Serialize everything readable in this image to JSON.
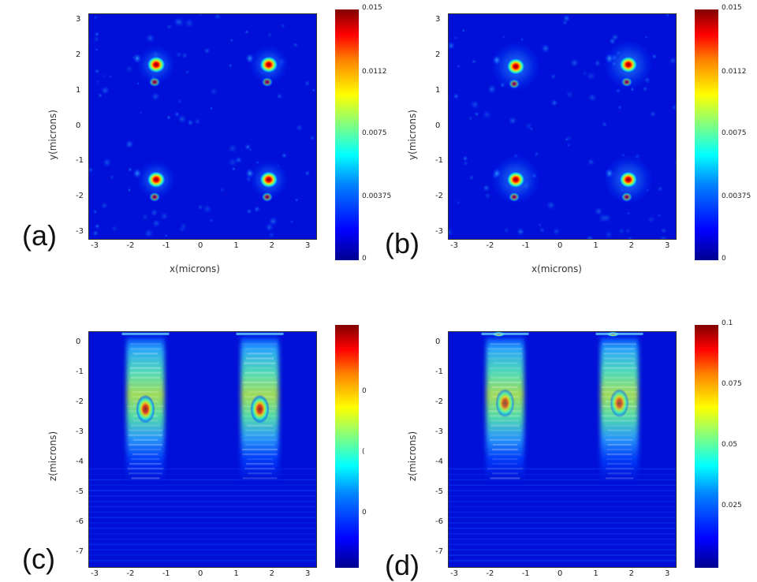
{
  "chart_data": [
    {
      "type": "heatmap",
      "panel_label": "(a)",
      "xlabel": "x(microns)",
      "ylabel": "y(microns)",
      "x_ticks": [
        "-3",
        "-2",
        "-1",
        "0",
        "1",
        "2",
        "3"
      ],
      "y_ticks": [
        "3",
        "2",
        "1",
        "0",
        "-1",
        "-2",
        "-3"
      ],
      "xlim": [
        -3.2,
        3.2
      ],
      "ylim": [
        -3.2,
        3.2
      ],
      "colorbar_ticks": [
        "0.015",
        "0.0112",
        "0.0075",
        "0.00375",
        "0"
      ],
      "clim": [
        0,
        0.015
      ],
      "peaks": [
        {
          "x": -1.3,
          "y": 1.75,
          "v": 0.015
        },
        {
          "x": 1.85,
          "y": 1.75,
          "v": 0.015
        },
        {
          "x": -1.3,
          "y": -1.5,
          "v": 0.015
        },
        {
          "x": 1.85,
          "y": -1.5,
          "v": 0.015
        }
      ]
    },
    {
      "type": "heatmap",
      "panel_label": "(b)",
      "xlabel": "x(microns)",
      "ylabel": "y(microns)",
      "x_ticks": [
        "-3",
        "-2",
        "-1",
        "0",
        "1",
        "2",
        "3"
      ],
      "y_ticks": [
        "3",
        "2",
        "1",
        "0",
        "-1",
        "-2",
        "-3"
      ],
      "xlim": [
        -3.2,
        3.2
      ],
      "ylim": [
        -3.2,
        3.2
      ],
      "colorbar_ticks": [
        "0.015",
        "0.0112",
        "0.0075",
        "0.00375",
        "0"
      ],
      "clim": [
        0,
        0.015
      ],
      "peaks": [
        {
          "x": -1.3,
          "y": 1.7,
          "v": 0.015
        },
        {
          "x": 1.85,
          "y": 1.75,
          "v": 0.015
        },
        {
          "x": -1.3,
          "y": -1.5,
          "v": 0.015
        },
        {
          "x": 1.85,
          "y": -1.5,
          "v": 0.015
        }
      ]
    },
    {
      "type": "heatmap",
      "panel_label": "(c)",
      "xlabel": "",
      "ylabel": "z(microns)",
      "x_ticks": [
        "-3",
        "-2",
        "-1",
        "0",
        "1",
        "2",
        "3"
      ],
      "y_ticks": [
        "0",
        "-1",
        "-2",
        "-3",
        "-4",
        "-5",
        "-6",
        "-7"
      ],
      "xlim": [
        -3.2,
        3.2
      ],
      "ylim": [
        -7.5,
        0.4
      ],
      "colorbar_ticks": [
        "0",
        "(",
        "0"
      ],
      "columns": [
        {
          "x": -1.6,
          "z_peak": -2.2
        },
        {
          "x": 1.6,
          "z_peak": -2.2
        }
      ]
    },
    {
      "type": "heatmap",
      "panel_label": "(d)",
      "xlabel": "",
      "ylabel": "z(microns)",
      "x_ticks": [
        "-3",
        "-2",
        "-1",
        "0",
        "1",
        "2",
        "3"
      ],
      "y_ticks": [
        "0",
        "-1",
        "-2",
        "-3",
        "-4",
        "-5",
        "-6",
        "-7"
      ],
      "xlim": [
        -3.2,
        3.2
      ],
      "ylim": [
        -7.5,
        0.4
      ],
      "colorbar_ticks": [
        "0.1",
        "0.075",
        "0.05",
        "0.025"
      ],
      "clim": [
        0,
        0.1
      ],
      "columns": [
        {
          "x": -1.6,
          "z_peak": -2.0
        },
        {
          "x": 1.6,
          "z_peak": -2.0
        }
      ]
    }
  ]
}
